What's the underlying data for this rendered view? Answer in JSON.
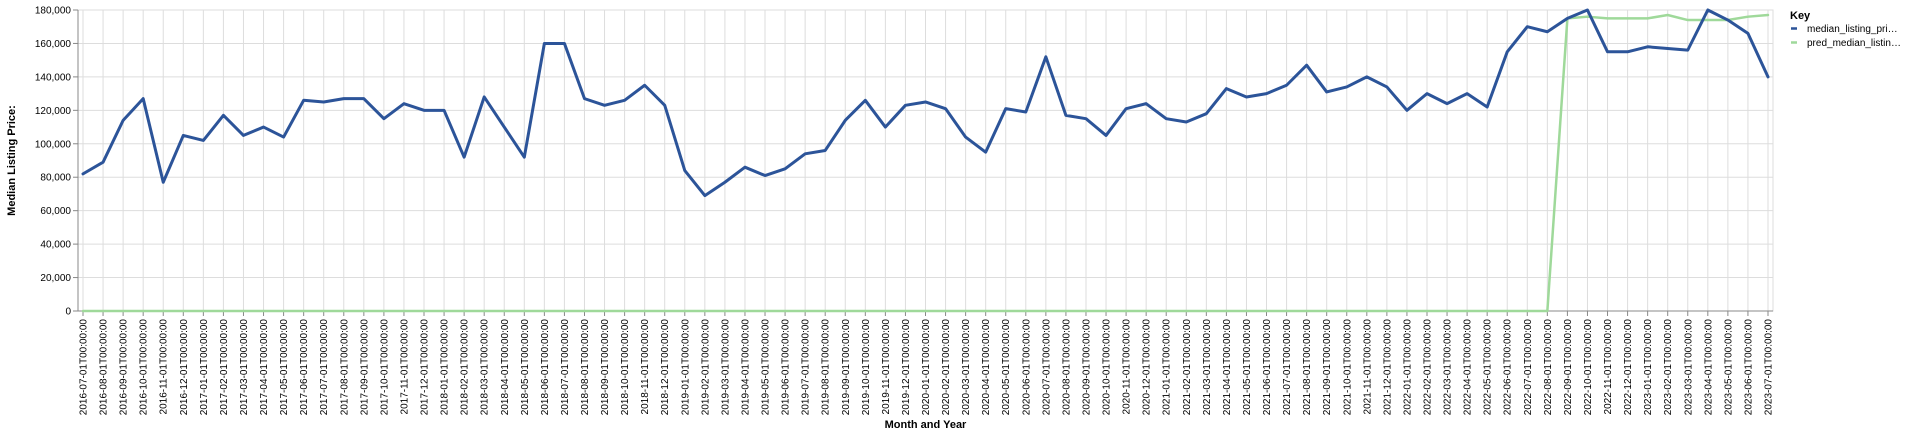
{
  "chart_data": {
    "type": "line",
    "xlabel": "Month and Year",
    "ylabel": "Median Listing Price:",
    "ylim": [
      0,
      180000
    ],
    "y_ticks": [
      0,
      20000,
      40000,
      60000,
      80000,
      100000,
      120000,
      140000,
      160000,
      180000
    ],
    "y_tick_labels": [
      "0",
      "20,000",
      "40,000",
      "60,000",
      "80,000",
      "100,000",
      "120,000",
      "140,000",
      "160,000",
      "180,000"
    ],
    "grid": true,
    "legend": {
      "title": "Key",
      "placement": "top-right",
      "entries": [
        "median_listing_pri…",
        "pred_median_listin…"
      ]
    },
    "colors": {
      "median_listing_price": "#2c5499",
      "pred_median_listing_price": "#9fd99a"
    },
    "x": [
      "2016-07-01T00:00:00",
      "2016-08-01T00:00:00",
      "2016-09-01T00:00:00",
      "2016-10-01T00:00:00",
      "2016-11-01T00:00:00",
      "2016-12-01T00:00:00",
      "2017-01-01T00:00:00",
      "2017-02-01T00:00:00",
      "2017-03-01T00:00:00",
      "2017-04-01T00:00:00",
      "2017-05-01T00:00:00",
      "2017-06-01T00:00:00",
      "2017-07-01T00:00:00",
      "2017-08-01T00:00:00",
      "2017-09-01T00:00:00",
      "2017-10-01T00:00:00",
      "2017-11-01T00:00:00",
      "2017-12-01T00:00:00",
      "2018-01-01T00:00:00",
      "2018-02-01T00:00:00",
      "2018-03-01T00:00:00",
      "2018-04-01T00:00:00",
      "2018-05-01T00:00:00",
      "2018-06-01T00:00:00",
      "2018-07-01T00:00:00",
      "2018-08-01T00:00:00",
      "2018-09-01T00:00:00",
      "2018-10-01T00:00:00",
      "2018-11-01T00:00:00",
      "2018-12-01T00:00:00",
      "2019-01-01T00:00:00",
      "2019-02-01T00:00:00",
      "2019-03-01T00:00:00",
      "2019-04-01T00:00:00",
      "2019-05-01T00:00:00",
      "2019-06-01T00:00:00",
      "2019-07-01T00:00:00",
      "2019-08-01T00:00:00",
      "2019-09-01T00:00:00",
      "2019-10-01T00:00:00",
      "2019-11-01T00:00:00",
      "2019-12-01T00:00:00",
      "2020-01-01T00:00:00",
      "2020-02-01T00:00:00",
      "2020-03-01T00:00:00",
      "2020-04-01T00:00:00",
      "2020-05-01T00:00:00",
      "2020-06-01T00:00:00",
      "2020-07-01T00:00:00",
      "2020-08-01T00:00:00",
      "2020-09-01T00:00:00",
      "2020-10-01T00:00:00",
      "2020-11-01T00:00:00",
      "2020-12-01T00:00:00",
      "2021-01-01T00:00:00",
      "2021-02-01T00:00:00",
      "2021-03-01T00:00:00",
      "2021-04-01T00:00:00",
      "2021-05-01T00:00:00",
      "2021-06-01T00:00:00",
      "2021-07-01T00:00:00",
      "2021-08-01T00:00:00",
      "2021-09-01T00:00:00",
      "2021-10-01T00:00:00",
      "2021-11-01T00:00:00",
      "2021-12-01T00:00:00",
      "2022-01-01T00:00:00",
      "2022-02-01T00:00:00",
      "2022-03-01T00:00:00",
      "2022-04-01T00:00:00",
      "2022-05-01T00:00:00",
      "2022-06-01T00:00:00",
      "2022-07-01T00:00:00",
      "2022-08-01T00:00:00",
      "2022-09-01T00:00:00",
      "2022-10-01T00:00:00",
      "2022-11-01T00:00:00",
      "2022-12-01T00:00:00",
      "2023-01-01T00:00:00",
      "2023-02-01T00:00:00",
      "2023-03-01T00:00:00",
      "2023-04-01T00:00:00",
      "2023-05-01T00:00:00",
      "2023-06-01T00:00:00",
      "2023-07-01T00:00:00"
    ],
    "series": [
      {
        "name": "median_listing_pri…",
        "values": [
          82000,
          89000,
          114000,
          127000,
          77000,
          105000,
          102000,
          117000,
          105000,
          110000,
          104000,
          126000,
          125000,
          127000,
          127000,
          115000,
          124000,
          120000,
          120000,
          92000,
          128000,
          110000,
          92000,
          160000,
          160000,
          127000,
          123000,
          126000,
          135000,
          123000,
          84000,
          69000,
          77000,
          86000,
          81000,
          85000,
          94000,
          96000,
          114000,
          126000,
          110000,
          123000,
          125000,
          121000,
          104000,
          95000,
          121000,
          119000,
          152000,
          117000,
          115000,
          105000,
          121000,
          124000,
          115000,
          113000,
          118000,
          133000,
          128000,
          130000,
          135000,
          147000,
          131000,
          134000,
          140000,
          134000,
          120000,
          130000,
          124000,
          130000,
          122000,
          155000,
          170000,
          167000,
          175000,
          180000,
          155000,
          155000,
          158000,
          157000,
          156000,
          180000,
          174000,
          166000,
          140000
        ]
      },
      {
        "name": "pred_median_listin…",
        "values": [
          0,
          0,
          0,
          0,
          0,
          0,
          0,
          0,
          0,
          0,
          0,
          0,
          0,
          0,
          0,
          0,
          0,
          0,
          0,
          0,
          0,
          0,
          0,
          0,
          0,
          0,
          0,
          0,
          0,
          0,
          0,
          0,
          0,
          0,
          0,
          0,
          0,
          0,
          0,
          0,
          0,
          0,
          0,
          0,
          0,
          0,
          0,
          0,
          0,
          0,
          0,
          0,
          0,
          0,
          0,
          0,
          0,
          0,
          0,
          0,
          0,
          0,
          0,
          0,
          0,
          0,
          0,
          0,
          0,
          0,
          0,
          0,
          0,
          0,
          175000,
          176000,
          175000,
          175000,
          175000,
          177000,
          174000,
          174000,
          174000,
          176000,
          177000
        ]
      }
    ]
  }
}
